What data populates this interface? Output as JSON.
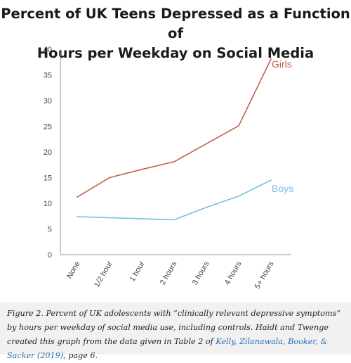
{
  "title_line1": "Percent of UK Teens Depressed as a Function of",
  "title_line2": "Hours per Weekday on Social Media",
  "chart_data": {
    "type": "line",
    "categories": [
      "None",
      "1/2 hour",
      "1 hour",
      "2 hours",
      "3 hours",
      "4 hours",
      "5+ hours"
    ],
    "series": [
      {
        "name": "Girls",
        "values": [
          11.2,
          15.0,
          16.6,
          18.1,
          21.6,
          25.1,
          38.1
        ],
        "color": "#c0604e"
      },
      {
        "name": "Boys",
        "values": [
          7.4,
          7.2,
          7.0,
          6.8,
          9.2,
          11.4,
          14.5
        ],
        "color": "#79c0de"
      }
    ],
    "yticks": [
      "0",
      "5",
      "10",
      "15",
      "20",
      "25",
      "30",
      "35",
      "40"
    ],
    "ylim": [
      0,
      40
    ],
    "grid": false
  },
  "caption": {
    "label": "Figure 2.",
    "text1": " Percent of UK adolescents with “clinically relevant depressive symptoms” by hours per weekday of social media use, including controls. Haidt and Twenge created this graph from the data given in Table 2 of ",
    "link": "Kelly, Zilanawala, Booker, & Sacker (2019)",
    "text2": ", page 6."
  }
}
